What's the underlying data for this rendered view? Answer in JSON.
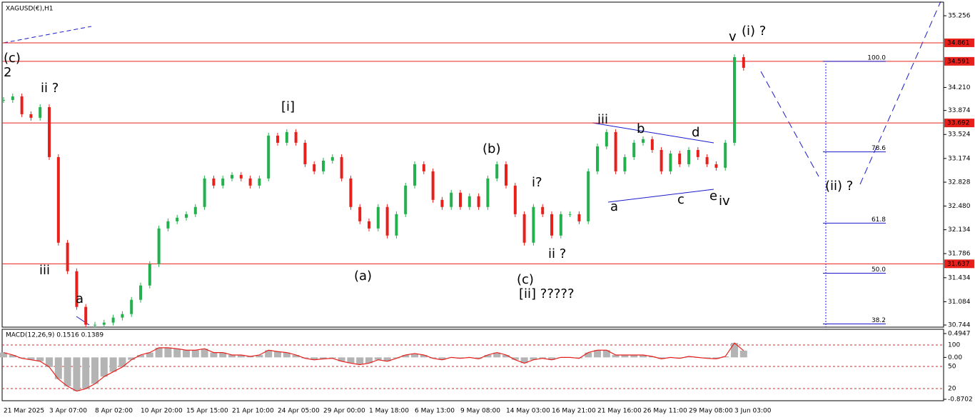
{
  "chart_data": {
    "type": "candlestick",
    "title": "XAGUSD(€),H1",
    "categories": [
      "21 Mar 2025",
      null,
      null,
      null,
      null,
      "3 Apr 07:00",
      null,
      null,
      null,
      null,
      "8 Apr 02:00",
      null,
      null,
      null,
      null,
      "10 Apr 20:00",
      null,
      null,
      null,
      null,
      "15 Apr 15:00",
      null,
      null,
      null,
      null,
      "21 Apr 10:00",
      null,
      null,
      null,
      null,
      "24 Apr 05:00",
      null,
      null,
      null,
      null,
      "29 Apr 00:00",
      null,
      null,
      null,
      null,
      "1 May 18:00",
      null,
      null,
      null,
      null,
      "6 May 13:00",
      null,
      null,
      null,
      null,
      "9 May 08:00",
      null,
      null,
      null,
      null,
      "14 May 03:00",
      null,
      null,
      null,
      null,
      "16 May 21:00",
      null,
      null,
      null,
      null,
      "21 May 16:00",
      null,
      null,
      null,
      null,
      "26 May 11:00",
      null,
      null,
      null,
      null,
      "29 May 08:00",
      null,
      null,
      null,
      null,
      "3 Jun 03:00",
      null
    ],
    "series": [
      {
        "name": "XAGUSD",
        "up_color": "#22b14c",
        "down_color": "#e8201c",
        "values": [
          34.027,
          34.079,
          33.819,
          33.767,
          33.923,
          33.194,
          31.945,
          31.529,
          31.008,
          30.748,
          30.748,
          30.779,
          30.852,
          30.904,
          31.112,
          31.321,
          31.633,
          32.153,
          32.257,
          32.309,
          32.361,
          32.466,
          32.882,
          32.778,
          32.882,
          32.934,
          32.882,
          32.778,
          32.882,
          33.507,
          33.403,
          33.559,
          33.403,
          33.09,
          32.986,
          33.142,
          33.194,
          32.882,
          32.466,
          32.257,
          32.153,
          32.466,
          32.049,
          32.361,
          32.778,
          33.09,
          32.986,
          32.57,
          32.466,
          32.674,
          32.466,
          32.622,
          32.466,
          32.882,
          33.09,
          32.778,
          32.361,
          31.945,
          32.466,
          32.361,
          32.049,
          32.361,
          32.361,
          32.257,
          32.986,
          33.35,
          33.559,
          32.986,
          33.194,
          33.403,
          33.455,
          33.298,
          32.986,
          33.246,
          33.09,
          33.298,
          33.194,
          33.09,
          33.038,
          33.403,
          34.652,
          34.496
        ]
      }
    ],
    "ylim": [
      30.713,
      35.444
    ],
    "yticks": [
      {
        "value": 35.256,
        "label": "35.256"
      },
      {
        "value": 34.21,
        "label": "34.210"
      },
      {
        "value": 33.874,
        "label": "33.874"
      },
      {
        "value": 33.524,
        "label": "33.524"
      },
      {
        "value": 33.174,
        "label": "33.174"
      },
      {
        "value": 32.828,
        "label": "32.828"
      },
      {
        "value": 32.48,
        "label": "32.480"
      },
      {
        "value": 32.134,
        "label": "32.134"
      },
      {
        "value": 31.786,
        "label": "31.786"
      },
      {
        "value": 31.434,
        "label": "31.434"
      },
      {
        "value": 31.084,
        "label": "31.084"
      },
      {
        "value": 30.744,
        "label": "30.744"
      }
    ],
    "levels": [
      {
        "value": 34.861,
        "label": "34.861"
      },
      {
        "value": 34.591,
        "label": "34.591"
      },
      {
        "value": 33.692,
        "label": "33.692"
      },
      {
        "value": 31.637,
        "label": "31.637"
      }
    ],
    "level_color": "#e8201c",
    "fib": [
      {
        "label": "100.0",
        "price": 34.591
      },
      {
        "label": "78.6",
        "price": 33.27
      },
      {
        "label": "61.8",
        "price": 32.23
      },
      {
        "label": "50.0",
        "price": 31.5
      },
      {
        "label": "38.2",
        "price": 30.76
      }
    ],
    "fib_color": "#1a1acc",
    "annotations": [
      {
        "text": "(c)",
        "color": "#1a1acc"
      },
      {
        "text": "2",
        "color": "#000000"
      },
      {
        "text": "ii ?",
        "color": "#e030e0"
      },
      {
        "text": "iii",
        "color": "#e030e0"
      },
      {
        "text": "a",
        "color": "#e030e0"
      },
      {
        "text": "[i]",
        "color": "#1a8a1a"
      },
      {
        "text": "(a)",
        "color": "#1a1acc"
      },
      {
        "text": "(b)",
        "color": "#1a1acc"
      },
      {
        "text": "i?",
        "color": "#e030e0"
      },
      {
        "text": "ii ?",
        "color": "#e030e0"
      },
      {
        "text": "(c)",
        "color": "#1a1acc"
      },
      {
        "text": "[ii] ?????",
        "color": "#1a8a1a"
      },
      {
        "text": "iii",
        "color": "#e030e0"
      },
      {
        "text": "a",
        "color": "#000000"
      },
      {
        "text": "b",
        "color": "#000000"
      },
      {
        "text": "c",
        "color": "#000000"
      },
      {
        "text": "d",
        "color": "#000000"
      },
      {
        "text": "e",
        "color": "#000000"
      },
      {
        "text": "iv",
        "color": "#e030e0"
      },
      {
        "text": "v",
        "color": "#e030e0"
      },
      {
        "text": "(i) ?",
        "color": "#1a1acc"
      },
      {
        "text": "(ii) ?",
        "color": "#1a1acc"
      }
    ],
    "macd": {
      "title": "MACD(12,26,9) 0.1516 0.1389",
      "color": "#e8201c",
      "y2lim": [
        -0.8702,
        0.4947
      ],
      "y2ticks": [
        0.4947,
        {
          "value": 0,
          "label": "0.00"
        },
        -0.8702
      ],
      "level_labels": [
        "100",
        "50",
        "20"
      ],
      "values": [
        0.1,
        0.05,
        -0.02,
        -0.05,
        -0.08,
        -0.2,
        -0.45,
        -0.6,
        -0.7,
        -0.65,
        -0.55,
        -0.4,
        -0.3,
        -0.2,
        -0.05,
        0.05,
        0.1,
        0.2,
        0.2,
        0.18,
        0.15,
        0.15,
        0.18,
        0.1,
        0.1,
        0.05,
        0.05,
        0.02,
        0.05,
        0.15,
        0.12,
        0.1,
        0.05,
        -0.02,
        -0.05,
        -0.03,
        -0.02,
        -0.08,
        -0.12,
        -0.15,
        -0.12,
        -0.05,
        -0.08,
        -0.02,
        0.05,
        0.08,
        0.05,
        -0.02,
        -0.05,
        0.0,
        -0.02,
        0.0,
        -0.03,
        0.05,
        0.1,
        0.05,
        -0.05,
        -0.12,
        -0.05,
        -0.02,
        -0.05,
        0.0,
        0.0,
        -0.02,
        0.1,
        0.15,
        0.15,
        0.05,
        0.05,
        0.05,
        0.05,
        0.02,
        -0.03,
        0.0,
        -0.02,
        0.02,
        0.0,
        -0.02,
        -0.03,
        0.02,
        0.3,
        0.14
      ]
    }
  }
}
